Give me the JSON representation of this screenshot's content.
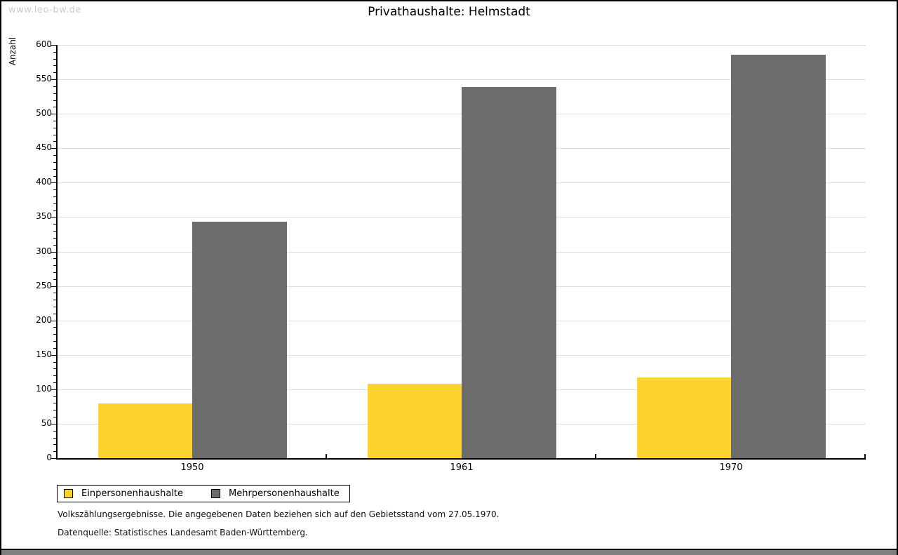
{
  "watermark": "www.leo-bw.de",
  "chart_data": {
    "type": "bar",
    "title": "Privathaushalte: Helmstadt",
    "ylabel": "Anzahl",
    "xlabel": "",
    "categories": [
      "1950",
      "1961",
      "1970"
    ],
    "series": [
      {
        "name": "Einpersonenhaushalte",
        "color": "#FCD32F",
        "values": [
          80,
          108,
          117
        ]
      },
      {
        "name": "Mehrpersonenhaushalte",
        "color": "#6C6C6C",
        "values": [
          343,
          539,
          586
        ]
      }
    ],
    "ylim": [
      0,
      600
    ],
    "y_major_step": 50,
    "y_minor_step": 10,
    "grid": true,
    "legend_position": "bottom-left"
  },
  "footnotes": [
    "Volkszählungsergebnisse. Die angegebenen Daten beziehen sich auf den Gebietsstand vom 27.05.1970.",
    "Datenquelle: Statistisches Landesamt Baden-Württemberg."
  ],
  "colors": {
    "gridline": "#DDDDDD",
    "axis": "#000000",
    "watermark": "#CCCCCC",
    "bottom_strip": "#808080"
  }
}
